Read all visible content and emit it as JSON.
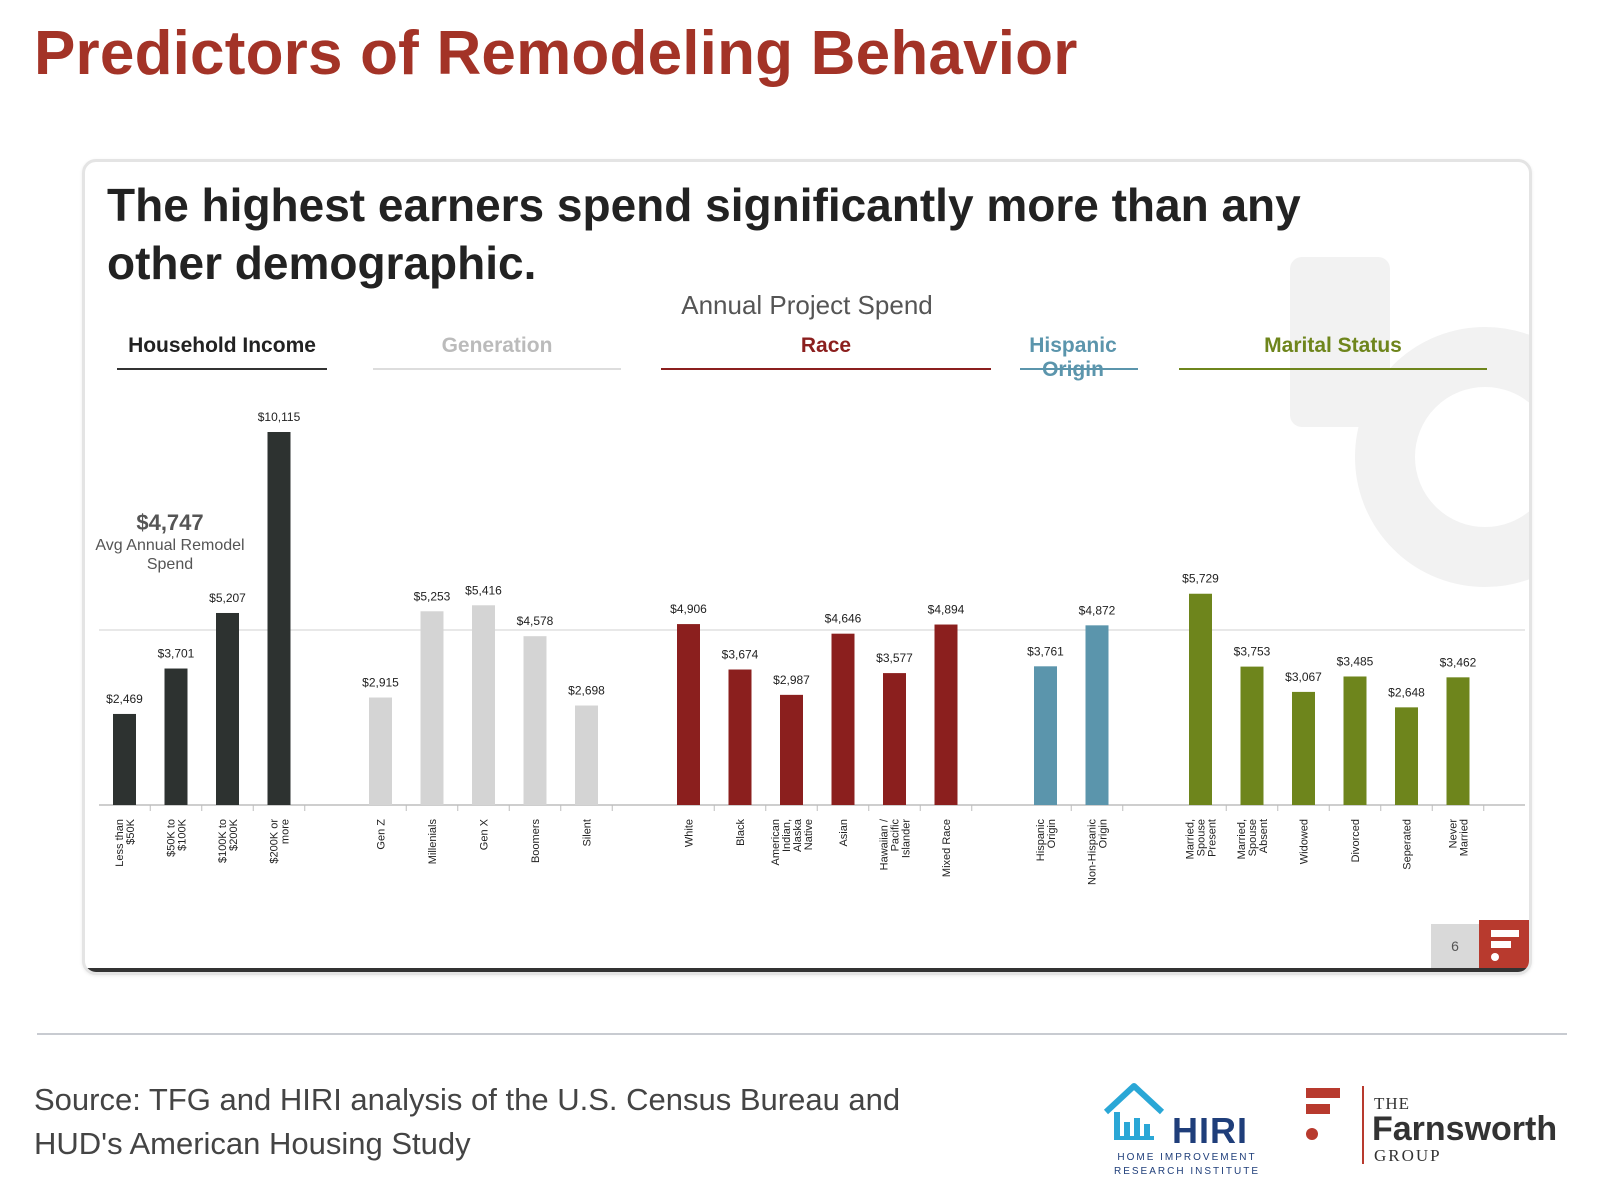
{
  "title": "Predictors of Remodeling Behavior",
  "headline": "The highest earners spend significantly more than any other demographic.",
  "page_number": "6",
  "source": "Source: TFG and HIRI analysis of the U.S. Census Bureau and HUD's American Housing Study",
  "avg": {
    "value": "$4,747",
    "label": "Avg Annual Remodel Spend"
  },
  "logos": {
    "hiri": {
      "name": "HIRI",
      "sub": "HOME IMPROVEMENT RESEARCH INSTITUTE"
    },
    "tfg": {
      "the": "THE",
      "name": "Farnsworth",
      "group": "GROUP"
    }
  },
  "chart_data": {
    "type": "bar",
    "title": "Annual Project Spend",
    "ylim": [
      0,
      11000
    ],
    "reference_line": 4747,
    "groups": [
      {
        "name": "Household Income",
        "color": "#2d3230",
        "categories": [
          "Less than $50K",
          "$50K to $100K",
          "$100K to $200K",
          "$200K or more"
        ],
        "values": [
          2469,
          3701,
          5207,
          10115
        ],
        "labels": [
          "$2,469",
          "$3,701",
          "$5,207",
          "$10,115"
        ]
      },
      {
        "name": "Generation",
        "color": "#d4d4d4",
        "categories": [
          "Gen Z",
          "Millenials",
          "Gen X",
          "Boomers",
          "Silent"
        ],
        "values": [
          2915,
          5253,
          5416,
          4578,
          2698
        ],
        "labels": [
          "$2,915",
          "$5,253",
          "$5,416",
          "$4,578",
          "$2,698"
        ]
      },
      {
        "name": "Race",
        "color": "#8b1f1e",
        "categories": [
          "White",
          "Black",
          "American Indian, Alaska Native",
          "Asian",
          "Hawaiian / Pacific Islander",
          "Mixed Race"
        ],
        "values": [
          4906,
          3674,
          2987,
          4646,
          3577,
          4894
        ],
        "labels": [
          "$4,906",
          "$3,674",
          "$2,987",
          "$4,646",
          "$3,577",
          "$4,894"
        ]
      },
      {
        "name": "Hispanic Origin",
        "color": "#5b95ac",
        "categories": [
          "Hispanic Origin",
          "Non-Hispanic Origin"
        ],
        "values": [
          3761,
          4872
        ],
        "labels": [
          "$3,761",
          "$4,872"
        ]
      },
      {
        "name": "Marital Status",
        "color": "#6e851c",
        "categories": [
          "Married, Spouse Present",
          "Married, Spouse Absent",
          "Widowed",
          "Divorced",
          "Seperated",
          "Never Married"
        ],
        "values": [
          5729,
          3753,
          3067,
          3485,
          2648,
          3462
        ],
        "labels": [
          "$5,729",
          "$3,753",
          "$3,067",
          "$3,485",
          "$2,648",
          "$3,462"
        ]
      }
    ]
  }
}
